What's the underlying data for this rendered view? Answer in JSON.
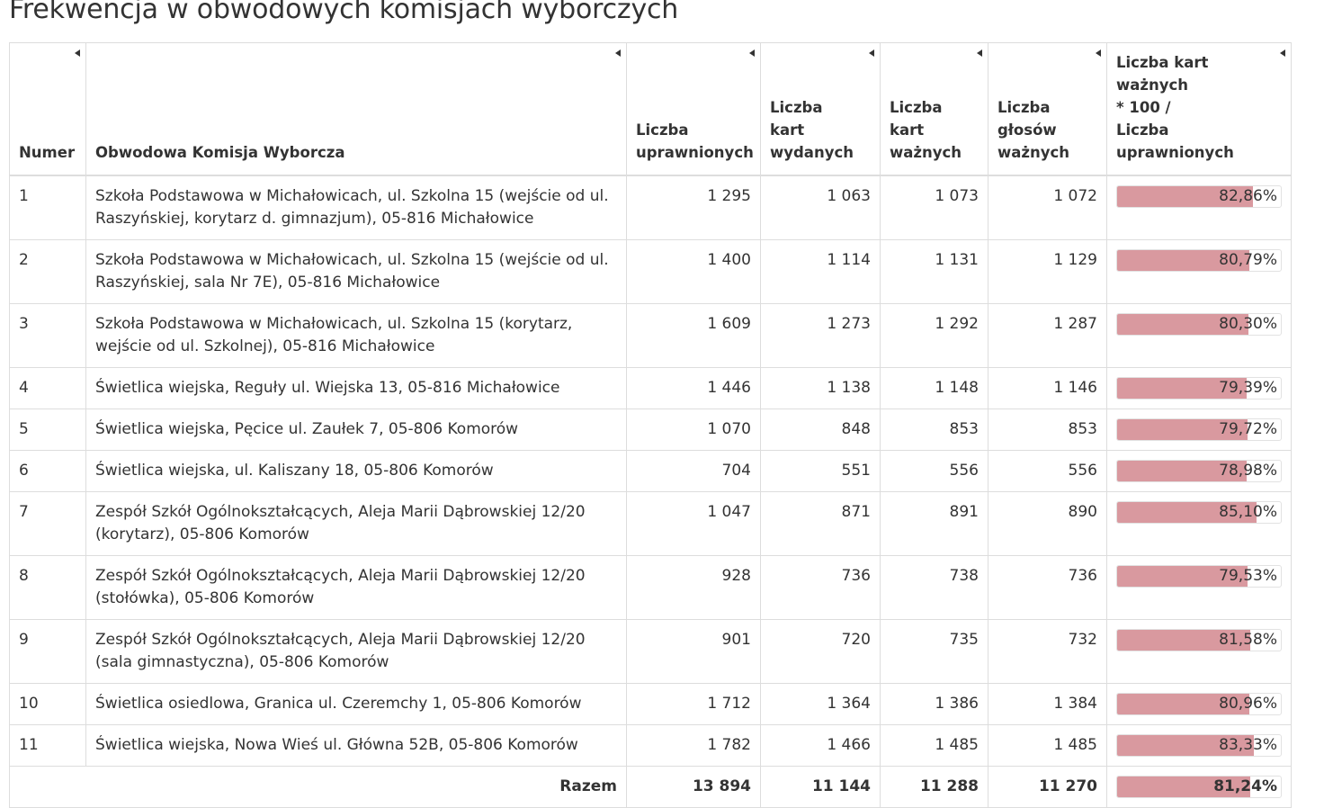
{
  "page": {
    "title": "Frekwencja w obwodowych komisjach wyborczych"
  },
  "table": {
    "headers": {
      "numer": "Numer",
      "komisja": "Obwodowa Komisja Wyborcza",
      "uprawnionych": [
        "Liczba",
        "uprawnionych"
      ],
      "wydanych": [
        "Liczba",
        "kart",
        "wydanych"
      ],
      "waznych": [
        "Liczba",
        "kart",
        "ważnych"
      ],
      "glosow": [
        "Liczba",
        "głosów",
        "ważnych"
      ],
      "frekwencja": [
        "Liczba kart ważnych",
        "* 100 /",
        "Liczba",
        "uprawnionych"
      ]
    },
    "rows": [
      {
        "numer": "1",
        "komisja": "Szkoła Podstawowa w Michałowicach, ul. Szkolna 15 (wejście od ul. Raszyńskiej, korytarz d. gimnazjum), 05-816 Michałowice",
        "uprawnionych": "1 295",
        "wydanych": "1 063",
        "waznych": "1 073",
        "glosow": "1 072",
        "frekwencja": "82,86%",
        "frekwencja_value": 82.86
      },
      {
        "numer": "2",
        "komisja": "Szkoła Podstawowa w Michałowicach, ul. Szkolna 15 (wejście od ul. Raszyńskiej, sala Nr 7E), 05-816 Michałowice",
        "uprawnionych": "1 400",
        "wydanych": "1 114",
        "waznych": "1 131",
        "glosow": "1 129",
        "frekwencja": "80,79%",
        "frekwencja_value": 80.79
      },
      {
        "numer": "3",
        "komisja": "Szkoła Podstawowa w Michałowicach, ul. Szkolna 15 (korytarz, wejście od ul. Szkolnej), 05-816 Michałowice",
        "uprawnionych": "1 609",
        "wydanych": "1 273",
        "waznych": "1 292",
        "glosow": "1 287",
        "frekwencja": "80,30%",
        "frekwencja_value": 80.3
      },
      {
        "numer": "4",
        "komisja": "Świetlica wiejska, Reguły ul. Wiejska 13, 05-816 Michałowice",
        "uprawnionych": "1 446",
        "wydanych": "1 138",
        "waznych": "1 148",
        "glosow": "1 146",
        "frekwencja": "79,39%",
        "frekwencja_value": 79.39
      },
      {
        "numer": "5",
        "komisja": "Świetlica wiejska, Pęcice ul. Zaułek 7, 05-806 Komorów",
        "uprawnionych": "1 070",
        "wydanych": "848",
        "waznych": "853",
        "glosow": "853",
        "frekwencja": "79,72%",
        "frekwencja_value": 79.72
      },
      {
        "numer": "6",
        "komisja": "Świetlica wiejska, ul. Kaliszany 18, 05-806 Komorów",
        "uprawnionych": "704",
        "wydanych": "551",
        "waznych": "556",
        "glosow": "556",
        "frekwencja": "78,98%",
        "frekwencja_value": 78.98
      },
      {
        "numer": "7",
        "komisja": "Zespół Szkół Ogólnokształcących, Aleja Marii Dąbrowskiej 12/20 (korytarz), 05-806 Komorów",
        "uprawnionych": "1 047",
        "wydanych": "871",
        "waznych": "891",
        "glosow": "890",
        "frekwencja": "85,10%",
        "frekwencja_value": 85.1
      },
      {
        "numer": "8",
        "komisja": "Zespół Szkół Ogólnokształcących, Aleja Marii Dąbrowskiej 12/20 (stołówka), 05-806 Komorów",
        "uprawnionych": "928",
        "wydanych": "736",
        "waznych": "738",
        "glosow": "736",
        "frekwencja": "79,53%",
        "frekwencja_value": 79.53
      },
      {
        "numer": "9",
        "komisja": "Zespół Szkół Ogólnokształcących, Aleja Marii Dąbrowskiej 12/20 (sala gimnastyczna), 05-806 Komorów",
        "uprawnionych": "901",
        "wydanych": "720",
        "waznych": "735",
        "glosow": "732",
        "frekwencja": "81,58%",
        "frekwencja_value": 81.58
      },
      {
        "numer": "10",
        "komisja": "Świetlica osiedlowa, Granica ul. Czeremchy 1, 05-806 Komorów",
        "uprawnionych": "1 712",
        "wydanych": "1 364",
        "waznych": "1 386",
        "glosow": "1 384",
        "frekwencja": "80,96%",
        "frekwencja_value": 80.96
      },
      {
        "numer": "11",
        "komisja": "Świetlica wiejska, Nowa Wieś ul. Główna 52B, 05-806 Komorów",
        "uprawnionych": "1 782",
        "wydanych": "1 466",
        "waznych": "1 485",
        "glosow": "1 485",
        "frekwencja": "83,33%",
        "frekwencja_value": 83.33
      }
    ],
    "total": {
      "label": "Razem",
      "uprawnionych": "13 894",
      "wydanych": "11 144",
      "waznych": "11 288",
      "glosow": "11 270",
      "frekwencja": "81,24%",
      "frekwencja_value": 81.24
    }
  },
  "colors": {
    "bar_fill": "#d9999f",
    "border": "#dddddd",
    "text": "#333333"
  },
  "icons": {
    "sort": "sort-arrow-icon"
  }
}
